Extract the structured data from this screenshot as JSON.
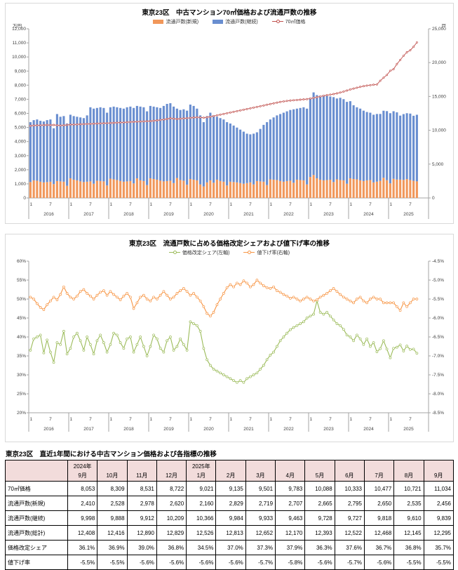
{
  "chart_data": [
    {
      "type": "bar",
      "title": "東京23区　中古マンション70㎡価格および流通戸数の推移",
      "grid": false,
      "legend_position": "top",
      "left_axis": {
        "unit": "万円",
        "min": 0,
        "max": 12000,
        "step": 1000,
        "percent": false
      },
      "right_axis": {
        "unit": "戸",
        "min": 0,
        "max": 25000,
        "step": 5000,
        "percent": false
      },
      "x_axis": {
        "years": [
          2016,
          2017,
          2018,
          2019,
          2020,
          2021,
          2022,
          2023,
          2024,
          2025
        ],
        "months_start": "2016-01",
        "months_end": "2025-09",
        "total_slots": 120,
        "tick_labels": [
          "1",
          "7"
        ]
      },
      "series": [
        {
          "name": "流通戸数(新規)",
          "type": "bar",
          "axis": "right",
          "color": "#F1975A",
          "values": [
            2350,
            2600,
            2550,
            2400,
            2300,
            2350,
            2400,
            2050,
            2500,
            2450,
            2400,
            1800,
            2900,
            2700,
            2600,
            2450,
            2350,
            2400,
            2450,
            2100,
            2550,
            2500,
            2450,
            1850,
            2850,
            2750,
            2650,
            2500,
            2400,
            2450,
            2500,
            2150,
            2900,
            2600,
            2500,
            1900,
            2900,
            2800,
            2700,
            2550,
            2450,
            2500,
            2550,
            2200,
            2950,
            2650,
            2550,
            1950,
            2800,
            2700,
            2600,
            2000,
            1700,
            2300,
            2600,
            2250,
            2700,
            2500,
            2400,
            1850,
            2400,
            2350,
            2300,
            2200,
            2100,
            2200,
            2300,
            2000,
            2500,
            2450,
            2400,
            1900,
            2750,
            2700,
            2650,
            2500,
            2400,
            2500,
            2550,
            2250,
            2700,
            2650,
            2600,
            2000,
            3100,
            3400,
            2900,
            2700,
            2600,
            2650,
            2700,
            2350,
            2750,
            2650,
            2600,
            2100,
            2900,
            2800,
            2750,
            2600,
            2500,
            2600,
            2650,
            2300,
            2410,
            2528,
            2978,
            2620,
            2160,
            2829,
            2719,
            2707,
            2665,
            2795,
            2650,
            2535,
            2456
          ]
        },
        {
          "name": "流通戸数(継続)",
          "type": "bar",
          "axis": "right",
          "color": "#698ED0",
          "values": [
            8850,
            8900,
            9050,
            9000,
            9000,
            9150,
            9200,
            8250,
            9900,
            9550,
            9700,
            9200,
            9400,
            9400,
            9400,
            9450,
            9450,
            9800,
            10950,
            11100,
            10750,
            10900,
            10850,
            10750,
            10550,
            10750,
            10750,
            10800,
            10800,
            10950,
            11000,
            11150,
            10700,
            10900,
            10900,
            10900,
            10700,
            10700,
            10700,
            10750,
            11150,
            11400,
            11450,
            11300,
            10250,
            10350,
            10550,
            10950,
            11000,
            10900,
            10600,
            10200,
            9500,
            9800,
            10000,
            9950,
            9300,
            9300,
            9200,
            9350,
            8600,
            8350,
            8100,
            7900,
            7700,
            7300,
            7100,
            7500,
            7200,
            7750,
            8400,
            9300,
            8850,
            9200,
            9550,
            9900,
            10200,
            10300,
            10450,
            10850,
            10500,
            10650,
            10800,
            11200,
            11700,
            12200,
            12300,
            12400,
            12600,
            12450,
            12300,
            12550,
            11950,
            12150,
            12000,
            12100,
            11400,
            10900,
            10650,
            10600,
            10400,
            10100,
            9950,
            10000,
            9998,
            9888,
            9912,
            10209,
            10366,
            9984,
            9933,
            9463,
            9728,
            9727,
            9818,
            9610,
            9839
          ]
        },
        {
          "name": "70㎡価格",
          "type": "line",
          "axis": "left",
          "color": "#C0504D",
          "values": [
            5120,
            5140,
            5150,
            5160,
            5170,
            5180,
            5170,
            5180,
            5160,
            5140,
            5160,
            5180,
            5200,
            5210,
            5220,
            5230,
            5240,
            5250,
            5260,
            5270,
            5280,
            5290,
            5300,
            5310,
            5320,
            5330,
            5340,
            5350,
            5360,
            5375,
            5390,
            5400,
            5410,
            5420,
            5430,
            5440,
            5450,
            5470,
            5500,
            5530,
            5560,
            5600,
            5650,
            5620,
            5600,
            5620,
            5640,
            5660,
            5680,
            5700,
            5720,
            5710,
            5690,
            5720,
            5760,
            5810,
            5860,
            5910,
            5960,
            6010,
            6060,
            6110,
            6160,
            6210,
            6260,
            6310,
            6360,
            6410,
            6460,
            6510,
            6560,
            6610,
            6660,
            6710,
            6760,
            6810,
            6850,
            6880,
            6910,
            6930,
            6950,
            6970,
            6990,
            7010,
            7050,
            7100,
            7150,
            7200,
            7250,
            7290,
            7330,
            7370,
            7420,
            7480,
            7550,
            7620,
            7700,
            7760,
            7820,
            7880,
            7930,
            7970,
            8000,
            8030,
            8053,
            8309,
            8531,
            8722,
            9021,
            9135,
            9501,
            9783,
            10088,
            10333,
            10477,
            10721,
            11034
          ]
        }
      ]
    },
    {
      "type": "line",
      "title": "東京23区　流通戸数に占める価格改定シェアおよび値下げ率の推移",
      "grid": false,
      "legend_position": "top",
      "left_axis": {
        "unit": "%",
        "min": 20,
        "max": 60,
        "step": 5,
        "percent": true
      },
      "right_axis": {
        "unit": "%",
        "min": -8.5,
        "max": -4.5,
        "step": 0.5,
        "percent": true
      },
      "x_axis": {
        "years": [
          2016,
          2017,
          2018,
          2019,
          2020,
          2021,
          2022,
          2023,
          2024,
          2025
        ],
        "months_start": "2016-01",
        "months_end": "2025-09",
        "total_slots": 120,
        "tick_labels": [
          "1",
          "7"
        ]
      },
      "series": [
        {
          "name": "価格改定シェア(左軸)",
          "type": "line",
          "axis": "left",
          "color": "#9BBB59",
          "values": [
            36.5,
            39.5,
            40,
            40.5,
            35.8,
            39.2,
            36,
            33.3,
            38.5,
            38,
            41.5,
            35.5,
            37,
            40,
            41,
            39,
            36.5,
            40,
            38,
            35.5,
            39,
            40.5,
            38.5,
            36,
            38,
            41,
            40.5,
            38.5,
            37,
            39.5,
            40,
            36,
            38,
            40,
            37.5,
            35,
            37.5,
            40.5,
            39.5,
            37,
            36,
            39,
            40,
            36.5,
            37.5,
            39.5,
            38,
            36.5,
            44,
            43.5,
            43,
            41.5,
            37,
            34,
            32.5,
            31.5,
            31,
            30.5,
            30,
            29.5,
            29,
            28.5,
            28,
            28.5,
            28,
            29,
            29.5,
            30,
            30.5,
            31.5,
            32.5,
            34,
            35.2,
            36,
            37.5,
            39,
            40,
            41,
            41.9,
            42.5,
            43,
            43.5,
            44,
            45,
            45.5,
            46,
            49.5,
            46.5,
            46,
            46.5,
            45.5,
            44.5,
            43.5,
            43,
            42,
            40.5,
            40,
            39,
            40.5,
            39.5,
            38,
            39.5,
            37.5,
            38.5,
            36.1,
            36.9,
            39,
            36.8,
            34.5,
            37,
            37.3,
            37.9,
            36.3,
            37.6,
            36.7,
            36.8,
            35.7
          ]
        },
        {
          "name": "値下げ率(右軸)",
          "type": "line",
          "axis": "right",
          "color": "#F79646",
          "values": [
            -5.45,
            -5.5,
            -5.62,
            -5.72,
            -5.78,
            -5.65,
            -5.55,
            -5.45,
            -5.52,
            -5.38,
            -5.18,
            -5.35,
            -5.45,
            -5.5,
            -5.42,
            -5.3,
            -5.25,
            -5.35,
            -5.42,
            -5.5,
            -5.4,
            -5.32,
            -5.28,
            -5.4,
            -5.3,
            -5.38,
            -5.45,
            -5.52,
            -5.42,
            -5.35,
            -5.45,
            -5.75,
            -5.6,
            -5.45,
            -5.4,
            -5.5,
            -5.55,
            -5.45,
            -5.5,
            -5.4,
            -5.3,
            -5.4,
            -5.5,
            -5.45,
            -5.35,
            -5.28,
            -5.22,
            -5.3,
            -5.4,
            -5.35,
            -5.45,
            -5.55,
            -5.7,
            -5.88,
            -5.95,
            -5.85,
            -5.65,
            -5.5,
            -5.35,
            -5.2,
            -5.12,
            -5.18,
            -5.08,
            -5.12,
            -5.02,
            -5.08,
            -5.18,
            -5.12,
            -5,
            -5.08,
            -5.15,
            -5.2,
            -5.22,
            -5.18,
            -5.28,
            -5.32,
            -5.38,
            -5.42,
            -5.48,
            -5.45,
            -5.5,
            -5.55,
            -5.5,
            -5.45,
            -5.5,
            -5.55,
            -5.52,
            -5.45,
            -5.4,
            -5.35,
            -5.28,
            -5.22,
            -5.3,
            -5.38,
            -5.45,
            -5.5,
            -5.55,
            -5.6,
            -5.5,
            -5.45,
            -5.55,
            -5.6,
            -5.5,
            -5.45,
            -5.5,
            -5.5,
            -5.6,
            -5.6,
            -5.6,
            -5.6,
            -5.7,
            -5.8,
            -5.6,
            -5.7,
            -5.6,
            -5.5,
            -5.5
          ]
        }
      ]
    }
  ],
  "table": {
    "title": "東京23区　直近1年間における中古マンション価格および各指標の推移",
    "header_bg": "#F2DCDB",
    "year_labels": [
      "2024年",
      "",
      "",
      "",
      "2025年",
      "",
      "",
      "",
      "",
      "",
      "",
      "",
      ""
    ],
    "months": [
      "9月",
      "10月",
      "11月",
      "12月",
      "1月",
      "2月",
      "3月",
      "4月",
      "5月",
      "6月",
      "7月",
      "8月",
      "9月"
    ],
    "rows": [
      {
        "label": "70㎡価格",
        "values": [
          "8,053",
          "8,309",
          "8,531",
          "8,722",
          "9,021",
          "9,135",
          "9,501",
          "9,783",
          "10,088",
          "10,333",
          "10,477",
          "10,721",
          "11,034"
        ]
      },
      {
        "label": "流通戸数(新規)",
        "values": [
          "2,410",
          "2,528",
          "2,978",
          "2,620",
          "2,160",
          "2,829",
          "2,719",
          "2,707",
          "2,665",
          "2,795",
          "2,650",
          "2,535",
          "2,456"
        ]
      },
      {
        "label": "流通戸数(継続)",
        "values": [
          "9,998",
          "9,888",
          "9,912",
          "10,209",
          "10,366",
          "9,984",
          "9,933",
          "9,463",
          "9,728",
          "9,727",
          "9,818",
          "9,610",
          "9,839"
        ]
      },
      {
        "label": "流通戸数(総計)",
        "values": [
          "12,408",
          "12,416",
          "12,890",
          "12,829",
          "12,526",
          "12,813",
          "12,652",
          "12,170",
          "12,393",
          "12,522",
          "12,468",
          "12,145",
          "12,295"
        ]
      },
      {
        "label": "価格改定シェア",
        "values": [
          "36.1%",
          "36.9%",
          "39.0%",
          "36.8%",
          "34.5%",
          "37.0%",
          "37.3%",
          "37.9%",
          "36.3%",
          "37.6%",
          "36.7%",
          "36.8%",
          "35.7%"
        ]
      },
      {
        "label": "値下げ率",
        "values": [
          "-5.5%",
          "-5.5%",
          "-5.6%",
          "-5.6%",
          "-5.6%",
          "-5.6%",
          "-5.7%",
          "-5.8%",
          "-5.6%",
          "-5.7%",
          "-5.6%",
          "-5.5%",
          "-5.5%"
        ]
      }
    ]
  }
}
